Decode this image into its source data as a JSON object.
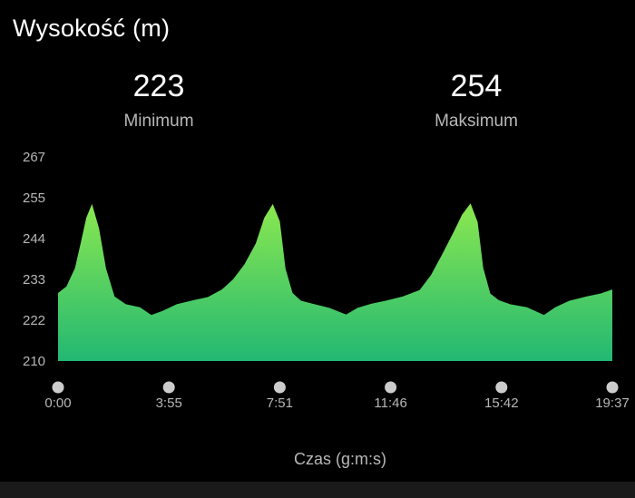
{
  "title": "Wysokość (m)",
  "stats": {
    "min": {
      "value": "223",
      "label": "Minimum"
    },
    "max": {
      "value": "254",
      "label": "Maksimum"
    }
  },
  "colors": {
    "background": "#000000",
    "fill_top": "#8be84f",
    "fill_bottom": "#22b873",
    "tick_dot": "#cccccc",
    "label": "#b7b7b7"
  },
  "chart_data": {
    "type": "area",
    "title": "Wysokość (m)",
    "xlabel": "Czas (g:m:s)",
    "ylabel": "",
    "ylim": [
      210,
      267
    ],
    "y_ticks": [
      "267",
      "255",
      "244",
      "233",
      "222",
      "210"
    ],
    "x_ticks": [
      "0:00",
      "3:55",
      "7:51",
      "11:46",
      "15:42",
      "19:37"
    ],
    "xlim_minutes": [
      0,
      19.62
    ],
    "series": [
      {
        "x_minutes": [
          0,
          0.3,
          0.6,
          0.8,
          1.0,
          1.2,
          1.45,
          1.7,
          2.0,
          2.4,
          2.9,
          3.3,
          3.7,
          4.2,
          4.8,
          5.3,
          5.8,
          6.2,
          6.6,
          7.0,
          7.3,
          7.6,
          7.85,
          8.05,
          8.3,
          8.6,
          9.0,
          9.6,
          10.2,
          10.6,
          11.1,
          11.6,
          12.2,
          12.8,
          13.2,
          13.6,
          14.0,
          14.3,
          14.6,
          14.85,
          15.05,
          15.3,
          15.6,
          16.0,
          16.6,
          17.2,
          17.6,
          18.1,
          18.7,
          19.2,
          19.62
        ],
        "y": [
          229,
          231,
          236,
          243,
          250,
          254,
          247,
          236,
          228,
          226,
          225,
          223,
          224,
          226,
          227,
          228,
          230,
          233,
          237,
          243,
          250,
          254,
          249,
          236,
          229,
          227,
          226,
          225,
          223,
          225,
          226,
          227,
          228,
          230,
          234,
          240,
          246,
          251,
          254,
          249,
          236,
          229,
          227,
          226,
          225,
          223,
          225,
          227,
          228,
          229,
          230
        ]
      }
    ]
  }
}
